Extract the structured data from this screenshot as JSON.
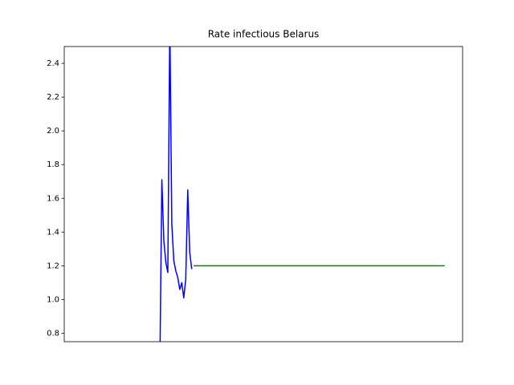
{
  "chart_data": {
    "type": "line",
    "title": "Rate infectious Belarus",
    "xlim": [
      0,
      200
    ],
    "ylim": [
      0.75,
      2.5
    ],
    "yticks": [
      0.8,
      {
        "value": 1.0,
        "label": "1.0"
      },
      1.2,
      1.4,
      1.6,
      1.8,
      {
        "value": 2.0,
        "label": "2.0"
      },
      2.2,
      2.4
    ],
    "grid": false,
    "series": [
      {
        "color": "#0000ff",
        "x": [
          48,
          49,
          50,
          51,
          52,
          53,
          54,
          55,
          56,
          57,
          58,
          59,
          60,
          61,
          62,
          63,
          64
        ],
        "values": [
          0.6,
          1.71,
          1.35,
          1.22,
          1.16,
          2.65,
          1.45,
          1.23,
          1.17,
          1.13,
          1.06,
          1.1,
          1.01,
          1.12,
          1.65,
          1.28,
          1.18
        ]
      },
      {
        "color": "#008000",
        "x": [
          65,
          191
        ],
        "values": [
          1.2,
          1.2
        ]
      }
    ]
  }
}
